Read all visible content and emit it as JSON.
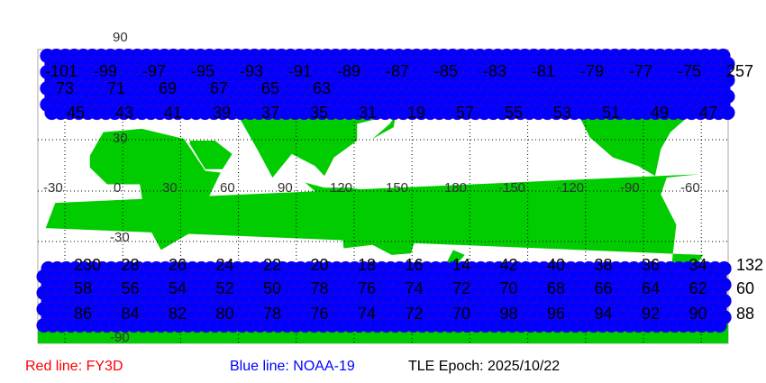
{
  "map": {
    "lon_labels": [
      "-30",
      "0",
      "30",
      "60",
      "90",
      "120",
      "150",
      "180",
      "-150",
      "-120",
      "-90",
      "-60"
    ],
    "lat_labels": [
      "90",
      "30",
      "-30",
      "-90"
    ],
    "colors": {
      "land": "#00cc00",
      "ocean": "#ffffff",
      "blue_track": "#0000ff",
      "grid": "#000000",
      "border": "#aaaaaa"
    },
    "north_pass_rows": [
      [
        "-101",
        "-99",
        "-97",
        "-95",
        "-93",
        "-91",
        "-89",
        "-87",
        "-85",
        "-83",
        "-81",
        "-79",
        "-77",
        "-75",
        "257"
      ],
      [
        "73",
        "71",
        "69",
        "67",
        "65",
        "63"
      ],
      [
        "45",
        "43",
        "41",
        "39",
        "37",
        "35",
        "31",
        "19",
        "57",
        "55",
        "53",
        "51",
        "49",
        "47"
      ]
    ],
    "south_pass_rows": [
      [
        "230",
        "28",
        "26",
        "24",
        "22",
        "20",
        "18",
        "16",
        "14",
        "42",
        "40",
        "38",
        "36",
        "34",
        "132"
      ],
      [
        "58",
        "56",
        "54",
        "52",
        "50",
        "78",
        "76",
        "74",
        "72",
        "70",
        "68",
        "66",
        "64",
        "62",
        "60"
      ],
      [
        "86",
        "84",
        "82",
        "80",
        "78",
        "76",
        "74",
        "72",
        "70",
        "98",
        "96",
        "94",
        "92",
        "90",
        "88"
      ]
    ]
  },
  "legend": {
    "red_label": "Red line: FY3D",
    "red_color": "#ff0000",
    "blue_label": "Blue line: NOAA-19",
    "blue_color": "#0000ff",
    "epoch_label": "TLE Epoch: 2025/10/22"
  }
}
